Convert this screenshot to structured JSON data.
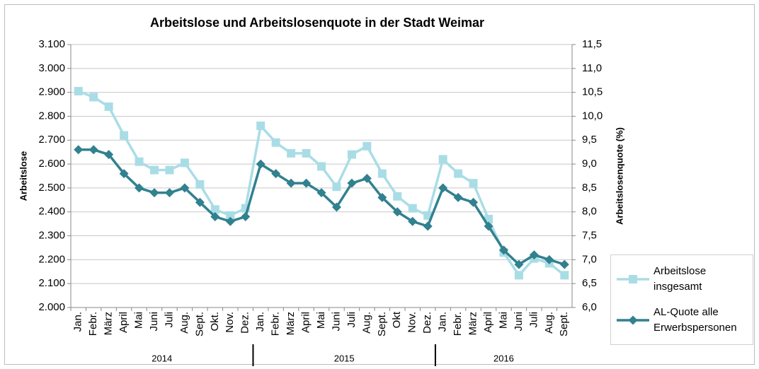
{
  "chart_data": {
    "type": "line",
    "title": "Arbeitslose und Arbeitslosenquote in der Stadt Weimar",
    "y_label": "Arbeitslose",
    "y2_label": "Arbeitslosenquote (%)",
    "groups": [
      {
        "label": "2014",
        "categories": [
          "Jan.",
          "Febr.",
          "März",
          "April",
          "Mai",
          "Juni",
          "Juli",
          "Aug.",
          "Sept.",
          "Okt.",
          "Nov.",
          "Dez."
        ]
      },
      {
        "label": "2015",
        "categories": [
          "Jan.",
          "Febr.",
          "März",
          "April",
          "Mai",
          "Juni",
          "Juli",
          "Aug.",
          "Sept.",
          "Okt",
          "Nov.",
          "Dez."
        ]
      },
      {
        "label": "2016",
        "categories": [
          "Jan.",
          "Febr.",
          "März",
          "April",
          "Mai",
          "Juni",
          "Juli",
          "Aug.",
          "Sept."
        ]
      }
    ],
    "series": [
      {
        "name": "Arbeitslose insgesamt",
        "color": "#a9dde6",
        "marker": "square",
        "values": [
          2905,
          2880,
          2840,
          2720,
          2610,
          2575,
          2575,
          2605,
          2515,
          2410,
          2385,
          2415,
          2760,
          2690,
          2645,
          2645,
          2590,
          2505,
          2640,
          2675,
          2560,
          2465,
          2415,
          2385,
          2620,
          2560,
          2520,
          2370,
          2230,
          2135,
          2205,
          2185,
          2135
        ]
      },
      {
        "name": "AL-Quote alle Erwerbspersonen",
        "color": "#31818f",
        "marker": "diamond",
        "axis": "y2",
        "values": [
          9.3,
          9.3,
          9.2,
          8.8,
          8.5,
          8.4,
          8.4,
          8.5,
          8.2,
          7.9,
          7.8,
          7.9,
          9.0,
          8.8,
          8.6,
          8.6,
          8.4,
          8.1,
          8.6,
          8.7,
          8.3,
          8.0,
          7.8,
          7.7,
          8.5,
          8.3,
          8.2,
          7.7,
          7.2,
          6.9,
          7.1,
          7.0,
          6.9
        ]
      }
    ],
    "ylim": [
      2000,
      3100
    ],
    "yticks": [
      {
        "value": 2000,
        "label": "2.000"
      },
      {
        "value": 2100,
        "label": "2.100"
      },
      {
        "value": 2200,
        "label": "2.200"
      },
      {
        "value": 2300,
        "label": "2.300"
      },
      {
        "value": 2400,
        "label": "2.400"
      },
      {
        "value": 2500,
        "label": "2.500"
      },
      {
        "value": 2600,
        "label": "2.600"
      },
      {
        "value": 2700,
        "label": "2.700"
      },
      {
        "value": 2800,
        "label": "2.800"
      },
      {
        "value": 2900,
        "label": "2.900"
      },
      {
        "value": 3000,
        "label": "3.000"
      },
      {
        "value": 3100,
        "label": "3.100"
      }
    ],
    "y2lim": [
      6,
      11.5
    ],
    "y2ticks": [
      {
        "value": 6,
        "label": "6,0"
      },
      {
        "value": 6.5,
        "label": "6,5"
      },
      {
        "value": 7,
        "label": "7,0"
      },
      {
        "value": 7.5,
        "label": "7,5"
      },
      {
        "value": 8,
        "label": "8,0"
      },
      {
        "value": 8.5,
        "label": "8,5"
      },
      {
        "value": 9,
        "label": "9,0"
      },
      {
        "value": 9.5,
        "label": "9,5"
      },
      {
        "value": 10,
        "label": "10,0"
      },
      {
        "value": 10.5,
        "label": "10,5"
      },
      {
        "value": 11,
        "label": "11,0"
      },
      {
        "value": 11.5,
        "label": "11,5"
      }
    ],
    "grid": true,
    "legend": "bottom-right"
  }
}
